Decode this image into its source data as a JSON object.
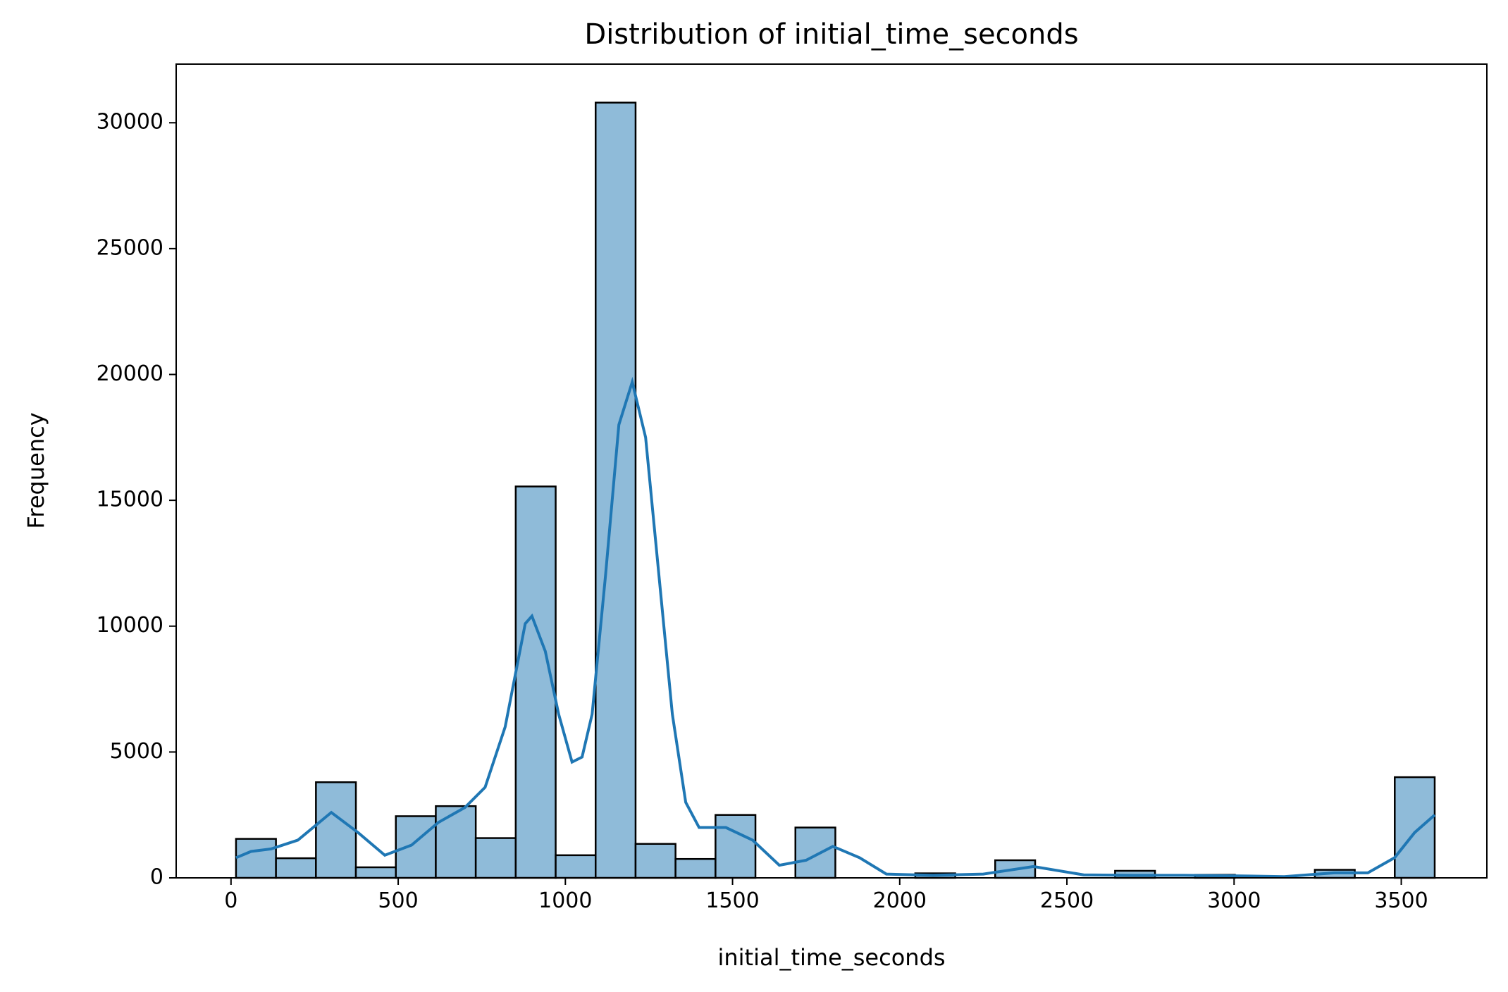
{
  "chart_data": {
    "type": "histogram",
    "title": "Distribution of initial_time_seconds",
    "x_label": "initial_time_seconds",
    "y_label": "Frequency",
    "bins": [
      15,
      134.5,
      254,
      373.5,
      493,
      612.5,
      732,
      851.5,
      971,
      1090.5,
      1210,
      1329.5,
      1449,
      1568.5,
      1688,
      1807.5,
      1927,
      2046.5,
      2166,
      2285.5,
      2405,
      2524.5,
      2644,
      2763.5,
      2883,
      3002.5,
      3122,
      3241.5,
      3361,
      3480.5,
      3600
    ],
    "values": [
      1550,
      780,
      3800,
      420,
      2450,
      2850,
      1580,
      15550,
      900,
      30800,
      1350,
      750,
      2500,
      0,
      2000,
      0,
      0,
      180,
      0,
      700,
      0,
      0,
      280,
      0,
      120,
      0,
      0,
      320,
      0,
      4000
    ],
    "color": "#8fbbd9",
    "edgecolor": "#000000",
    "kde": {
      "color": "#1f77b4",
      "x": [
        15,
        60,
        120,
        200,
        300,
        380,
        460,
        540,
        620,
        700,
        760,
        820,
        880,
        900,
        940,
        980,
        1020,
        1050,
        1080,
        1120,
        1160,
        1200,
        1240,
        1280,
        1320,
        1360,
        1400,
        1480,
        1560,
        1640,
        1720,
        1800,
        1880,
        1960,
        2100,
        2250,
        2400,
        2550,
        2700,
        2850,
        3000,
        3150,
        3300,
        3400,
        3480,
        3540,
        3600
      ],
      "values": [
        800,
        1050,
        1150,
        1500,
        2600,
        1800,
        900,
        1300,
        2200,
        2800,
        3600,
        6000,
        10100,
        10400,
        9000,
        6500,
        4600,
        4800,
        6500,
        12000,
        18000,
        19700,
        17500,
        12000,
        6500,
        3000,
        2000,
        2000,
        1500,
        500,
        700,
        1250,
        800,
        150,
        100,
        150,
        450,
        120,
        100,
        100,
        80,
        50,
        200,
        200,
        800,
        1800,
        2500
      ]
    },
    "xlim": [
      -164,
      3756
    ],
    "ylim": [
      0,
      32330
    ],
    "xticks": [
      0,
      500,
      1000,
      1500,
      2000,
      2500,
      3000,
      3500
    ],
    "yticks": [
      0,
      5000,
      10000,
      15000,
      20000,
      25000,
      30000
    ]
  }
}
